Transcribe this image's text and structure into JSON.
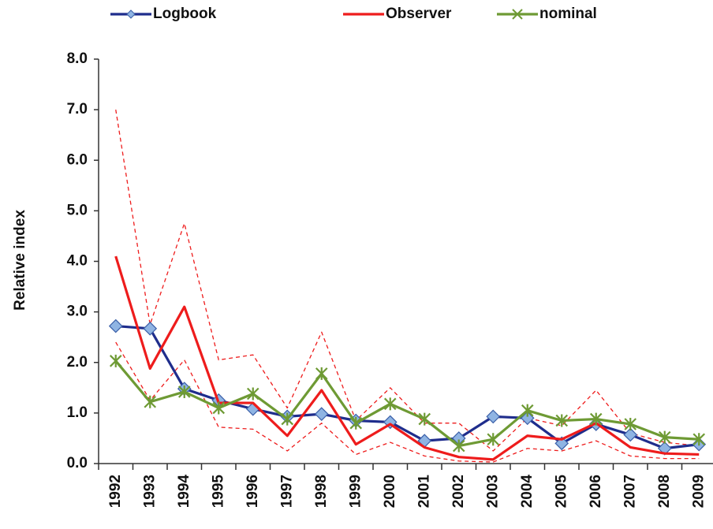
{
  "chart_data": {
    "type": "line",
    "y_label": "Relative index",
    "categories": [
      "1992",
      "1993",
      "1994",
      "1995",
      "1996",
      "1997",
      "1998",
      "1999",
      "2000",
      "2001",
      "2002",
      "2003",
      "2004",
      "2005",
      "2006",
      "2007",
      "2008",
      "2009"
    ],
    "series": [
      {
        "name": "Logbook",
        "color": "#1f2d8c",
        "marker": "diamond",
        "values": [
          2.72,
          2.67,
          1.48,
          1.25,
          1.08,
          0.93,
          0.98,
          0.85,
          0.82,
          0.45,
          0.5,
          0.93,
          0.9,
          0.4,
          0.78,
          0.57,
          0.3,
          0.38
        ]
      },
      {
        "name": "Observer",
        "color": "#ee1c1c",
        "values": [
          4.1,
          1.88,
          3.1,
          1.2,
          1.2,
          0.55,
          1.45,
          0.38,
          0.78,
          0.32,
          0.13,
          0.08,
          0.55,
          0.48,
          0.8,
          0.32,
          0.2,
          0.18
        ]
      },
      {
        "name": "nominal",
        "color": "#6e9a34",
        "marker": "star",
        "values": [
          2.03,
          1.22,
          1.42,
          1.1,
          1.38,
          0.88,
          1.78,
          0.8,
          1.18,
          0.88,
          0.35,
          0.48,
          1.05,
          0.85,
          0.88,
          0.78,
          0.52,
          0.48
        ]
      },
      {
        "color": "#ee1c1c",
        "dash": true,
        "values": [
          7.0,
          2.75,
          4.75,
          2.05,
          2.15,
          1.1,
          2.6,
          0.85,
          1.5,
          0.8,
          0.8,
          0.25,
          0.9,
          0.75,
          1.45,
          0.6,
          0.42,
          0.35
        ]
      },
      {
        "color": "#ee1c1c",
        "dash": true,
        "values": [
          2.4,
          1.25,
          2.05,
          0.72,
          0.68,
          0.25,
          0.8,
          0.18,
          0.42,
          0.15,
          0.05,
          0.03,
          0.3,
          0.25,
          0.45,
          0.15,
          0.1,
          0.1
        ]
      }
    ],
    "ylim": [
      0,
      8
    ],
    "yticks": [
      {
        "value": 0,
        "label": "0.0"
      },
      {
        "value": 1,
        "label": "1.0"
      },
      {
        "value": 2,
        "label": "2.0"
      },
      {
        "value": 3,
        "label": "3.0"
      },
      {
        "value": 4,
        "label": "4.0"
      },
      {
        "value": 5,
        "label": "5.0"
      },
      {
        "value": 6,
        "label": "6.0"
      },
      {
        "value": 7,
        "label": "7.0"
      },
      {
        "value": 8,
        "label": "8.0"
      }
    ],
    "grid": false,
    "legend": "top"
  }
}
